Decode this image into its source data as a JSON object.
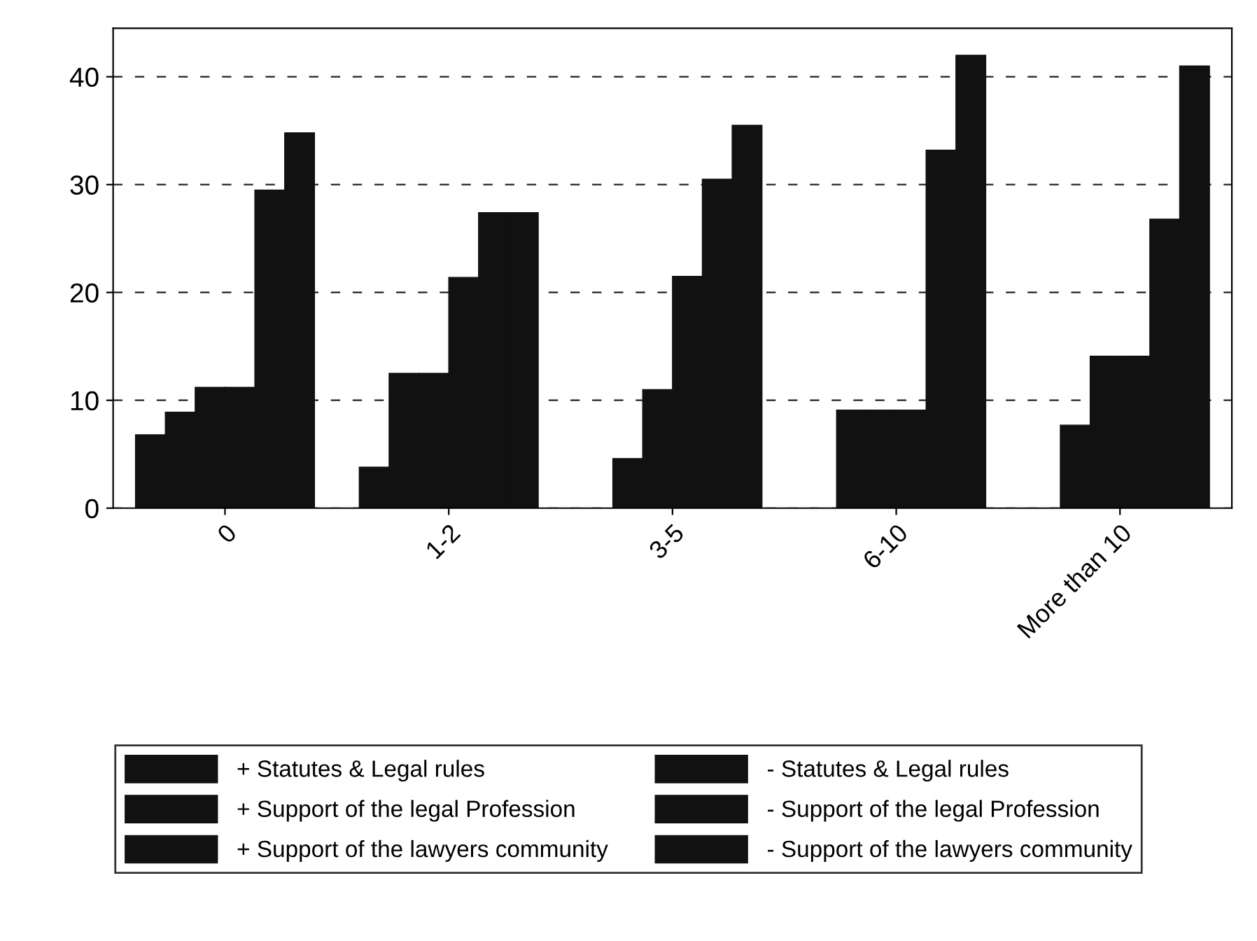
{
  "chart_data": {
    "type": "bar",
    "categories": [
      "0",
      "1-2",
      "3-5",
      "6-10",
      "More than 10"
    ],
    "series": [
      {
        "name": "+ Statutes & Legal rules",
        "color": "#111111",
        "values": [
          6.8,
          3.8,
          0,
          0,
          0
        ]
      },
      {
        "name": "+ Support of the legal Profession",
        "color": "#111111",
        "values": [
          8.9,
          12.5,
          4.6,
          9.1,
          7.7
        ]
      },
      {
        "name": "+ Support of the lawyers community",
        "color": "#111111",
        "values": [
          11.2,
          12.5,
          11,
          9.1,
          14.1
        ]
      },
      {
        "name": "- Statutes & Legal rules",
        "color": "#111111",
        "values": [
          11.2,
          21.4,
          21.5,
          9.1,
          14.1
        ]
      },
      {
        "name": "- Support of the legal Profession",
        "color": "#111111",
        "values": [
          29.5,
          27.4,
          30.5,
          33.2,
          26.8
        ]
      },
      {
        "name": "- Support of the lawyers community",
        "color": "#111111",
        "values": [
          34.8,
          27.4,
          35.5,
          42,
          41
        ]
      }
    ],
    "ylim": [
      0,
      44.5
    ],
    "yticks": [
      0,
      10,
      20,
      30,
      40
    ],
    "grid": "y",
    "legend": "bottom"
  }
}
